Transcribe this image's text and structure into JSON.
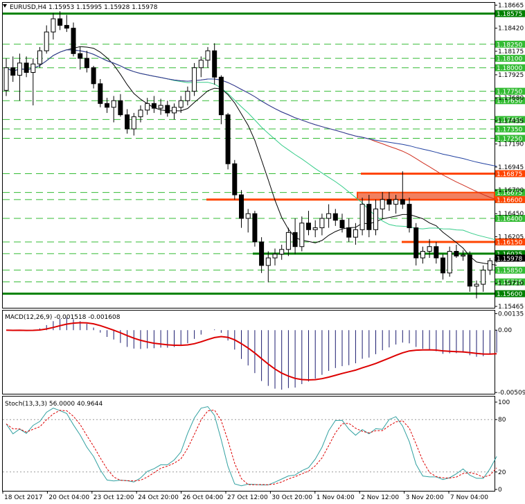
{
  "window": {
    "header": "EURUSD,H4  1.15953 1.15995 1.15928 1.15978",
    "symbol_icon": "triangle-down-icon"
  },
  "colors": {
    "bull": "#ffffff",
    "bear": "#000000",
    "sma_fast": "#000000",
    "sma_mid": "#33cc88",
    "sma_slow": "#d03020",
    "sma_long": "#2040a0",
    "level_green": "#008000",
    "level_dash": "#33bb33",
    "level_orange": "#ff4400",
    "zone_fill": "#f08060",
    "macd_hist": "#1a1a6e",
    "macd_signal": "#dd0000",
    "stoch_main": "#30a0a0",
    "stoch_signal": "#dd0000"
  },
  "chart_data": [
    {
      "type": "candlestick",
      "title": "EURUSD,H4",
      "ohlc_readout": [
        "1.15953",
        "1.15995",
        "1.15928",
        "1.15978"
      ],
      "ylim": [
        1.1545,
        1.1869
      ],
      "y_ticks": [
        "1.18665",
        "1.18420",
        "1.18175",
        "1.17925",
        "1.17680",
        "1.17435",
        "1.17190",
        "1.16945",
        "1.16700",
        "1.16450",
        "1.16205",
        "1.15960",
        "1.15710",
        "1.15465"
      ],
      "x_ticks": [
        "18 Oct 2017",
        "20 Oct 04:00",
        "23 Oct 12:00",
        "24 Oct 20:00",
        "26 Oct 04:00",
        "27 Oct 12:00",
        "30 Oct 20:00",
        "1 Nov 04:00",
        "2 Nov 12:00",
        "3 Nov 20:00",
        "7 Nov 04:00"
      ],
      "current_price": "1.15978",
      "levels_dashed": [
        "1.18250",
        "1.18100",
        "1.18000",
        "1.17750",
        "1.17650",
        "1.17450",
        "1.17350",
        "1.17250",
        "1.16875",
        "1.16675",
        "1.16600",
        "1.16400",
        "1.16150",
        "1.16025",
        "1.15850",
        "1.15725"
      ],
      "levels_solid": [
        {
          "price": "1.18575",
          "color": "green"
        },
        {
          "price": "1.15600",
          "color": "green"
        },
        {
          "price": "1.16025",
          "color": "green"
        },
        {
          "price": "1.16600",
          "color": "orange"
        },
        {
          "price": "1.16875",
          "color": "orange"
        },
        {
          "price": "1.16150",
          "color": "orange"
        }
      ],
      "zone": {
        "from": 1.166,
        "to": 1.16675
      },
      "candles": [
        [
          1.1776,
          1.181,
          1.177,
          1.18
        ],
        [
          1.18,
          1.1812,
          1.1785,
          1.1792
        ],
        [
          1.1792,
          1.1815,
          1.1765,
          1.1805
        ],
        [
          1.1805,
          1.1812,
          1.179,
          1.1795
        ],
        [
          1.1795,
          1.181,
          1.176,
          1.1804
        ],
        [
          1.1804,
          1.1822,
          1.18,
          1.1818
        ],
        [
          1.1818,
          1.1845,
          1.1815,
          1.1838
        ],
        [
          1.1838,
          1.1858,
          1.183,
          1.1852
        ],
        [
          1.1852,
          1.186,
          1.184,
          1.1845
        ],
        [
          1.1845,
          1.1856,
          1.1838,
          1.1842
        ],
        [
          1.1842,
          1.1848,
          1.1812,
          1.1815
        ],
        [
          1.1815,
          1.1822,
          1.1798,
          1.181
        ],
        [
          1.181,
          1.1818,
          1.1795,
          1.18
        ],
        [
          1.18,
          1.1802,
          1.1778,
          1.1783
        ],
        [
          1.1783,
          1.1788,
          1.1758,
          1.1762
        ],
        [
          1.1762,
          1.1768,
          1.1752,
          1.1758
        ],
        [
          1.1758,
          1.177,
          1.1742,
          1.1765
        ],
        [
          1.1765,
          1.1772,
          1.1748,
          1.175
        ],
        [
          1.175,
          1.1756,
          1.173,
          1.1735
        ],
        [
          1.1735,
          1.1752,
          1.1728,
          1.1748
        ],
        [
          1.1748,
          1.176,
          1.1742,
          1.1755
        ],
        [
          1.1755,
          1.1768,
          1.175,
          1.1762
        ],
        [
          1.1762,
          1.177,
          1.1752,
          1.1757
        ],
        [
          1.1757,
          1.1767,
          1.175,
          1.176
        ],
        [
          1.176,
          1.1765,
          1.1748,
          1.1752
        ],
        [
          1.1752,
          1.1762,
          1.1745,
          1.1758
        ],
        [
          1.1758,
          1.177,
          1.1752,
          1.1765
        ],
        [
          1.1765,
          1.178,
          1.176,
          1.1775
        ],
        [
          1.1775,
          1.1805,
          1.177,
          1.18
        ],
        [
          1.18,
          1.1812,
          1.179,
          1.1808
        ],
        [
          1.1808,
          1.1822,
          1.18,
          1.1818
        ],
        [
          1.1818,
          1.1826,
          1.1782,
          1.179
        ],
        [
          1.179,
          1.1792,
          1.174,
          1.175
        ],
        [
          1.175,
          1.1752,
          1.1692,
          1.1698
        ],
        [
          1.1698,
          1.1702,
          1.166,
          1.1665
        ],
        [
          1.1665,
          1.167,
          1.163,
          1.164
        ],
        [
          1.164,
          1.165,
          1.1625,
          1.1645
        ],
        [
          1.1645,
          1.1648,
          1.161,
          1.1615
        ],
        [
          1.1615,
          1.162,
          1.1582,
          1.159
        ],
        [
          1.159,
          1.1605,
          1.1572,
          1.1598
        ],
        [
          1.1598,
          1.1608,
          1.159,
          1.1602
        ],
        [
          1.1602,
          1.1612,
          1.1596,
          1.1607
        ],
        [
          1.1607,
          1.163,
          1.16,
          1.1625
        ],
        [
          1.1625,
          1.164,
          1.1602,
          1.161
        ],
        [
          1.161,
          1.1642,
          1.1605,
          1.1635
        ],
        [
          1.1635,
          1.1648,
          1.1622,
          1.1628
        ],
        [
          1.1628,
          1.1638,
          1.162,
          1.163
        ],
        [
          1.163,
          1.1645,
          1.1622,
          1.164
        ],
        [
          1.164,
          1.1655,
          1.163,
          1.1645
        ],
        [
          1.1645,
          1.165,
          1.1632,
          1.1638
        ],
        [
          1.1638,
          1.1645,
          1.1625,
          1.163
        ],
        [
          1.163,
          1.164,
          1.1615,
          1.162
        ],
        [
          1.162,
          1.1635,
          1.1612,
          1.1628
        ],
        [
          1.1628,
          1.1662,
          1.1622,
          1.1655
        ],
        [
          1.1655,
          1.1665,
          1.162,
          1.1628
        ],
        [
          1.1628,
          1.166,
          1.1622,
          1.165
        ],
        [
          1.165,
          1.1668,
          1.164,
          1.166
        ],
        [
          1.166,
          1.1668,
          1.1648,
          1.1655
        ],
        [
          1.1655,
          1.1665,
          1.1645,
          1.166
        ],
        [
          1.166,
          1.169,
          1.165,
          1.1655
        ],
        [
          1.1655,
          1.1662,
          1.1625,
          1.163
        ],
        [
          1.163,
          1.1635,
          1.159,
          1.1598
        ],
        [
          1.1598,
          1.161,
          1.1592,
          1.1605
        ],
        [
          1.1605,
          1.1618,
          1.1598,
          1.161
        ],
        [
          1.161,
          1.1615,
          1.1592,
          1.1598
        ],
        [
          1.1598,
          1.1602,
          1.1575,
          1.1582
        ],
        [
          1.1582,
          1.161,
          1.1578,
          1.1605
        ],
        [
          1.1605,
          1.1612,
          1.1598,
          1.16
        ],
        [
          1.16,
          1.1606,
          1.1595,
          1.1601
        ],
        [
          1.1601,
          1.1605,
          1.1562,
          1.1568
        ],
        [
          1.1568,
          1.1574,
          1.1555,
          1.157
        ],
        [
          1.157,
          1.159,
          1.1562,
          1.1585
        ],
        [
          1.1585,
          1.1598,
          1.158,
          1.1595
        ],
        [
          1.1595,
          1.16,
          1.1593,
          1.1598
        ]
      ]
    },
    {
      "type": "histogram",
      "title": "MACD(12,26,9) -0.001518 -0.001608",
      "ylim": [
        -0.0052,
        0.0016
      ],
      "y_ticks": [
        "0.00135",
        "0.00",
        "-0.005094"
      ],
      "signal_series_name": "signal"
    },
    {
      "type": "line",
      "title": "Stoch(13,3,3) 56.0000 40.9644",
      "ylim": [
        0,
        100
      ],
      "y_ticks": [
        "100",
        "80",
        "20",
        "0"
      ]
    }
  ]
}
